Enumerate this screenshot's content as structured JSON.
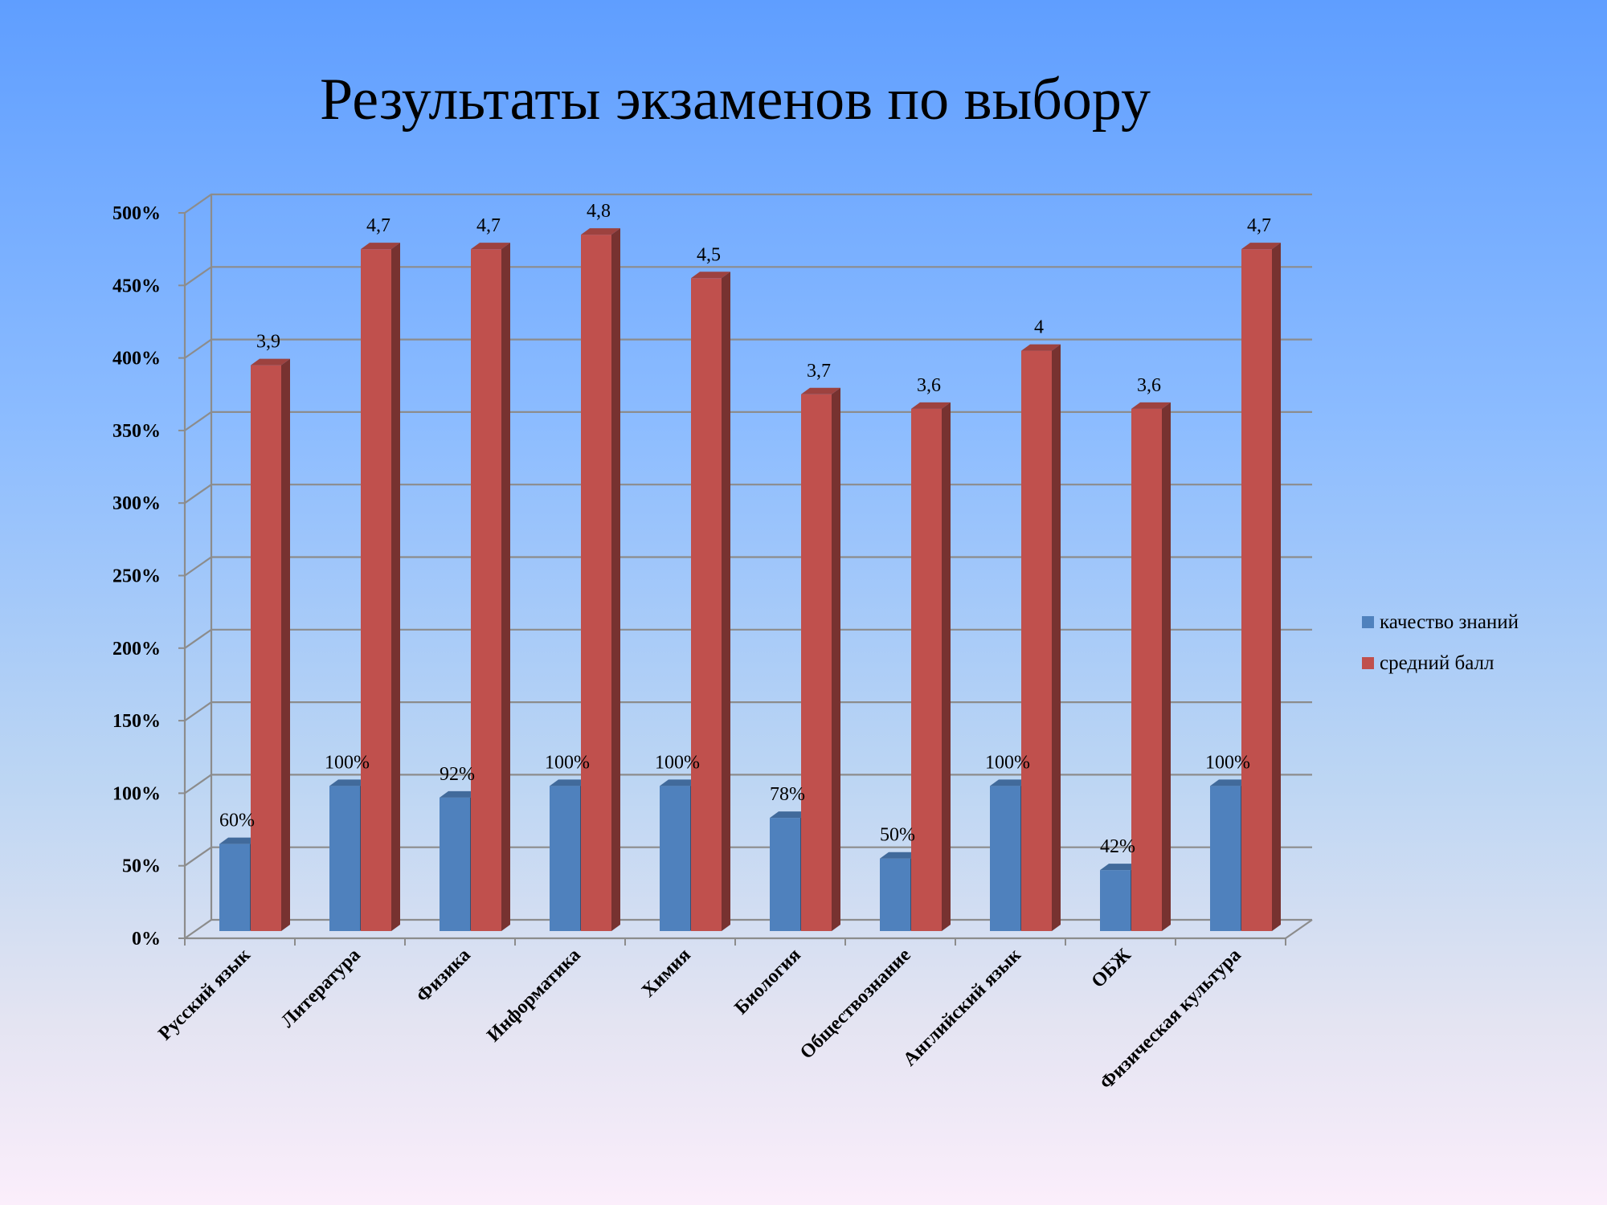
{
  "chart_data": {
    "type": "bar",
    "title": "Результаты экзаменов по выбору",
    "xlabel": "",
    "ylabel": "",
    "ylim": [
      0,
      500
    ],
    "y_tick_step": 50,
    "y_tick_format": "percent",
    "grid": true,
    "legend_position": "right",
    "categories": [
      "Русский язык",
      "Литература",
      "Физика",
      "Информатика",
      "Химия",
      "Биология",
      "Обществознание",
      "Английский язык",
      "ОБЖ",
      "Физическая культура"
    ],
    "series": [
      {
        "name": "качество знаний",
        "color": "#4f81bd",
        "values": [
          60,
          100,
          92,
          100,
          100,
          78,
          50,
          100,
          42,
          100
        ],
        "labels": [
          "60%",
          "100%",
          "92%",
          "100%",
          "100%",
          "78%",
          "50%",
          "100%",
          "42%",
          "100%"
        ]
      },
      {
        "name": "средний балл",
        "color": "#c0504d",
        "values": [
          390,
          470,
          470,
          480,
          450,
          370,
          360,
          400,
          360,
          470
        ],
        "labels": [
          "3,9",
          "4,7",
          "4,7",
          "4,8",
          "4,5",
          "3,7",
          "3,6",
          "4",
          "3,6",
          "4,7"
        ]
      }
    ]
  }
}
